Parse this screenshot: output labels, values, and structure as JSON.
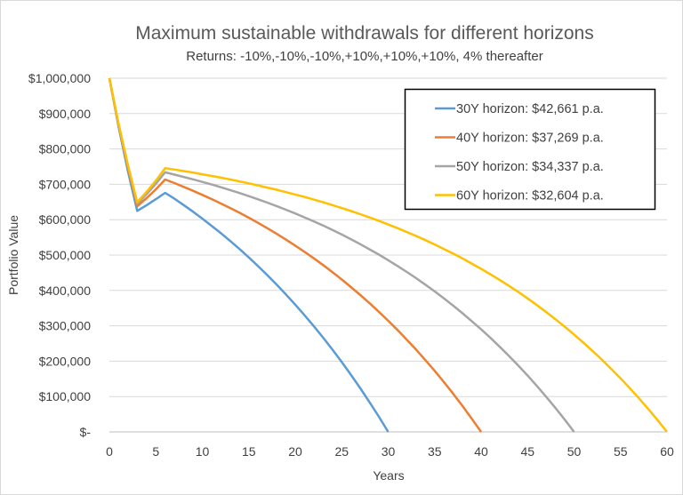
{
  "chart_data": {
    "type": "line",
    "title": "Maximum sustainable withdrawals for different horizons",
    "subtitle": "Returns: -10%,-10%,-10%,+10%,+10%,+10%,  4% thereafter",
    "xlabel": "Years",
    "ylabel": "Portfolio Value",
    "xlim": [
      0,
      60
    ],
    "ylim": [
      0,
      1000000
    ],
    "value_scale": 1000,
    "x_ticks": [
      "0",
      "5",
      "10",
      "15",
      "20",
      "25",
      "30",
      "35",
      "40",
      "45",
      "50",
      "55",
      "60"
    ],
    "y_ticks": [
      "$-",
      "$100,000",
      "$200,000",
      "$300,000",
      "$400,000",
      "$500,000",
      "$600,000",
      "$700,000",
      "$800,000",
      "$900,000",
      "$1,000,000"
    ],
    "grid": "horizontal",
    "legend_position": "top-right",
    "series": [
      {
        "name": "30Y horizon: $42,661 p.a.",
        "color": "#5B9BD5",
        "values": [
          1000,
          862,
          737,
          625,
          641,
          658,
          676,
          659.2,
          641.2,
          622.5,
          603.0,
          582.7,
          561.7,
          539.8,
          517.0,
          493.3,
          468.7,
          443.1,
          416.4,
          388.7,
          359.9,
          329.9,
          298.7,
          266.3,
          232.6,
          197.6,
          161.1,
          123.2,
          83.7,
          42.7,
          0
        ]
      },
      {
        "name": "40Y horizon: $37,269 p.a.",
        "color": "#ED7D31",
        "values": [
          1000,
          866.5,
          746.3,
          638.1,
          660.9,
          686.0,
          713.6,
          703.4,
          692.8,
          681.7,
          670.2,
          658.3,
          645.8,
          632.9,
          619.5,
          605.5,
          591.0,
          575.8,
          560.1,
          543.7,
          526.7,
          509.0,
          490.6,
          471.5,
          451.6,
          430.9,
          409.4,
          387.0,
          363.7,
          339.5,
          314.3,
          288.1,
          260.9,
          232.6,
          203.1,
          172.5,
          140.6,
          107.5,
          73.0,
          37.2,
          0
        ]
      },
      {
        "name": "50Y horizon: $34,337 p.a.",
        "color": "#A5A5A5",
        "values": [
          1000,
          869.1,
          751.3,
          645.3,
          672.1,
          701.5,
          733.9,
          727.5,
          720.9,
          714.1,
          706.9,
          699.5,
          691.7,
          683.7,
          675.3,
          666.6,
          657.6,
          648.2,
          638.4,
          628.2,
          617.6,
          606.6,
          595.2,
          583.3,
          570.9,
          558.0,
          544.6,
          530.7,
          516.2,
          501.2,
          485.5,
          469.2,
          452.2,
          434.6,
          416.3,
          397.2,
          377.4,
          356.8,
          335.4,
          313.1,
          289.9,
          265.8,
          240.7,
          214.6,
          187.5,
          159.3,
          129.9,
          99.4,
          67.7,
          34.7,
          0
        ]
      },
      {
        "name": "60Y horizon: $32,604 p.a.",
        "color": "#FFC000",
        "values": [
          1000,
          870.7,
          754.3,
          649.5,
          678.6,
          710.6,
          745.8,
          741.7,
          737.5,
          733.1,
          728.5,
          723.7,
          718.8,
          713.6,
          708.2,
          702.7,
          696.9,
          690.8,
          684.6,
          678.0,
          671.2,
          664.2,
          656.8,
          649.2,
          641.3,
          633.0,
          624.4,
          615.5,
          606.2,
          596.5,
          586.5,
          576.1,
          565.2,
          553.9,
          542.1,
          529.9,
          517.2,
          504.0,
          490.2,
          475.9,
          461.1,
          445.6,
          429.5,
          412.8,
          395.4,
          377.3,
          358.5,
          338.9,
          318.6,
          297.4,
          275.4,
          252.5,
          228.7,
          203.9,
          178.2,
          151.4,
          123.5,
          94.6,
          64.4,
          33.1,
          0
        ]
      }
    ]
  }
}
